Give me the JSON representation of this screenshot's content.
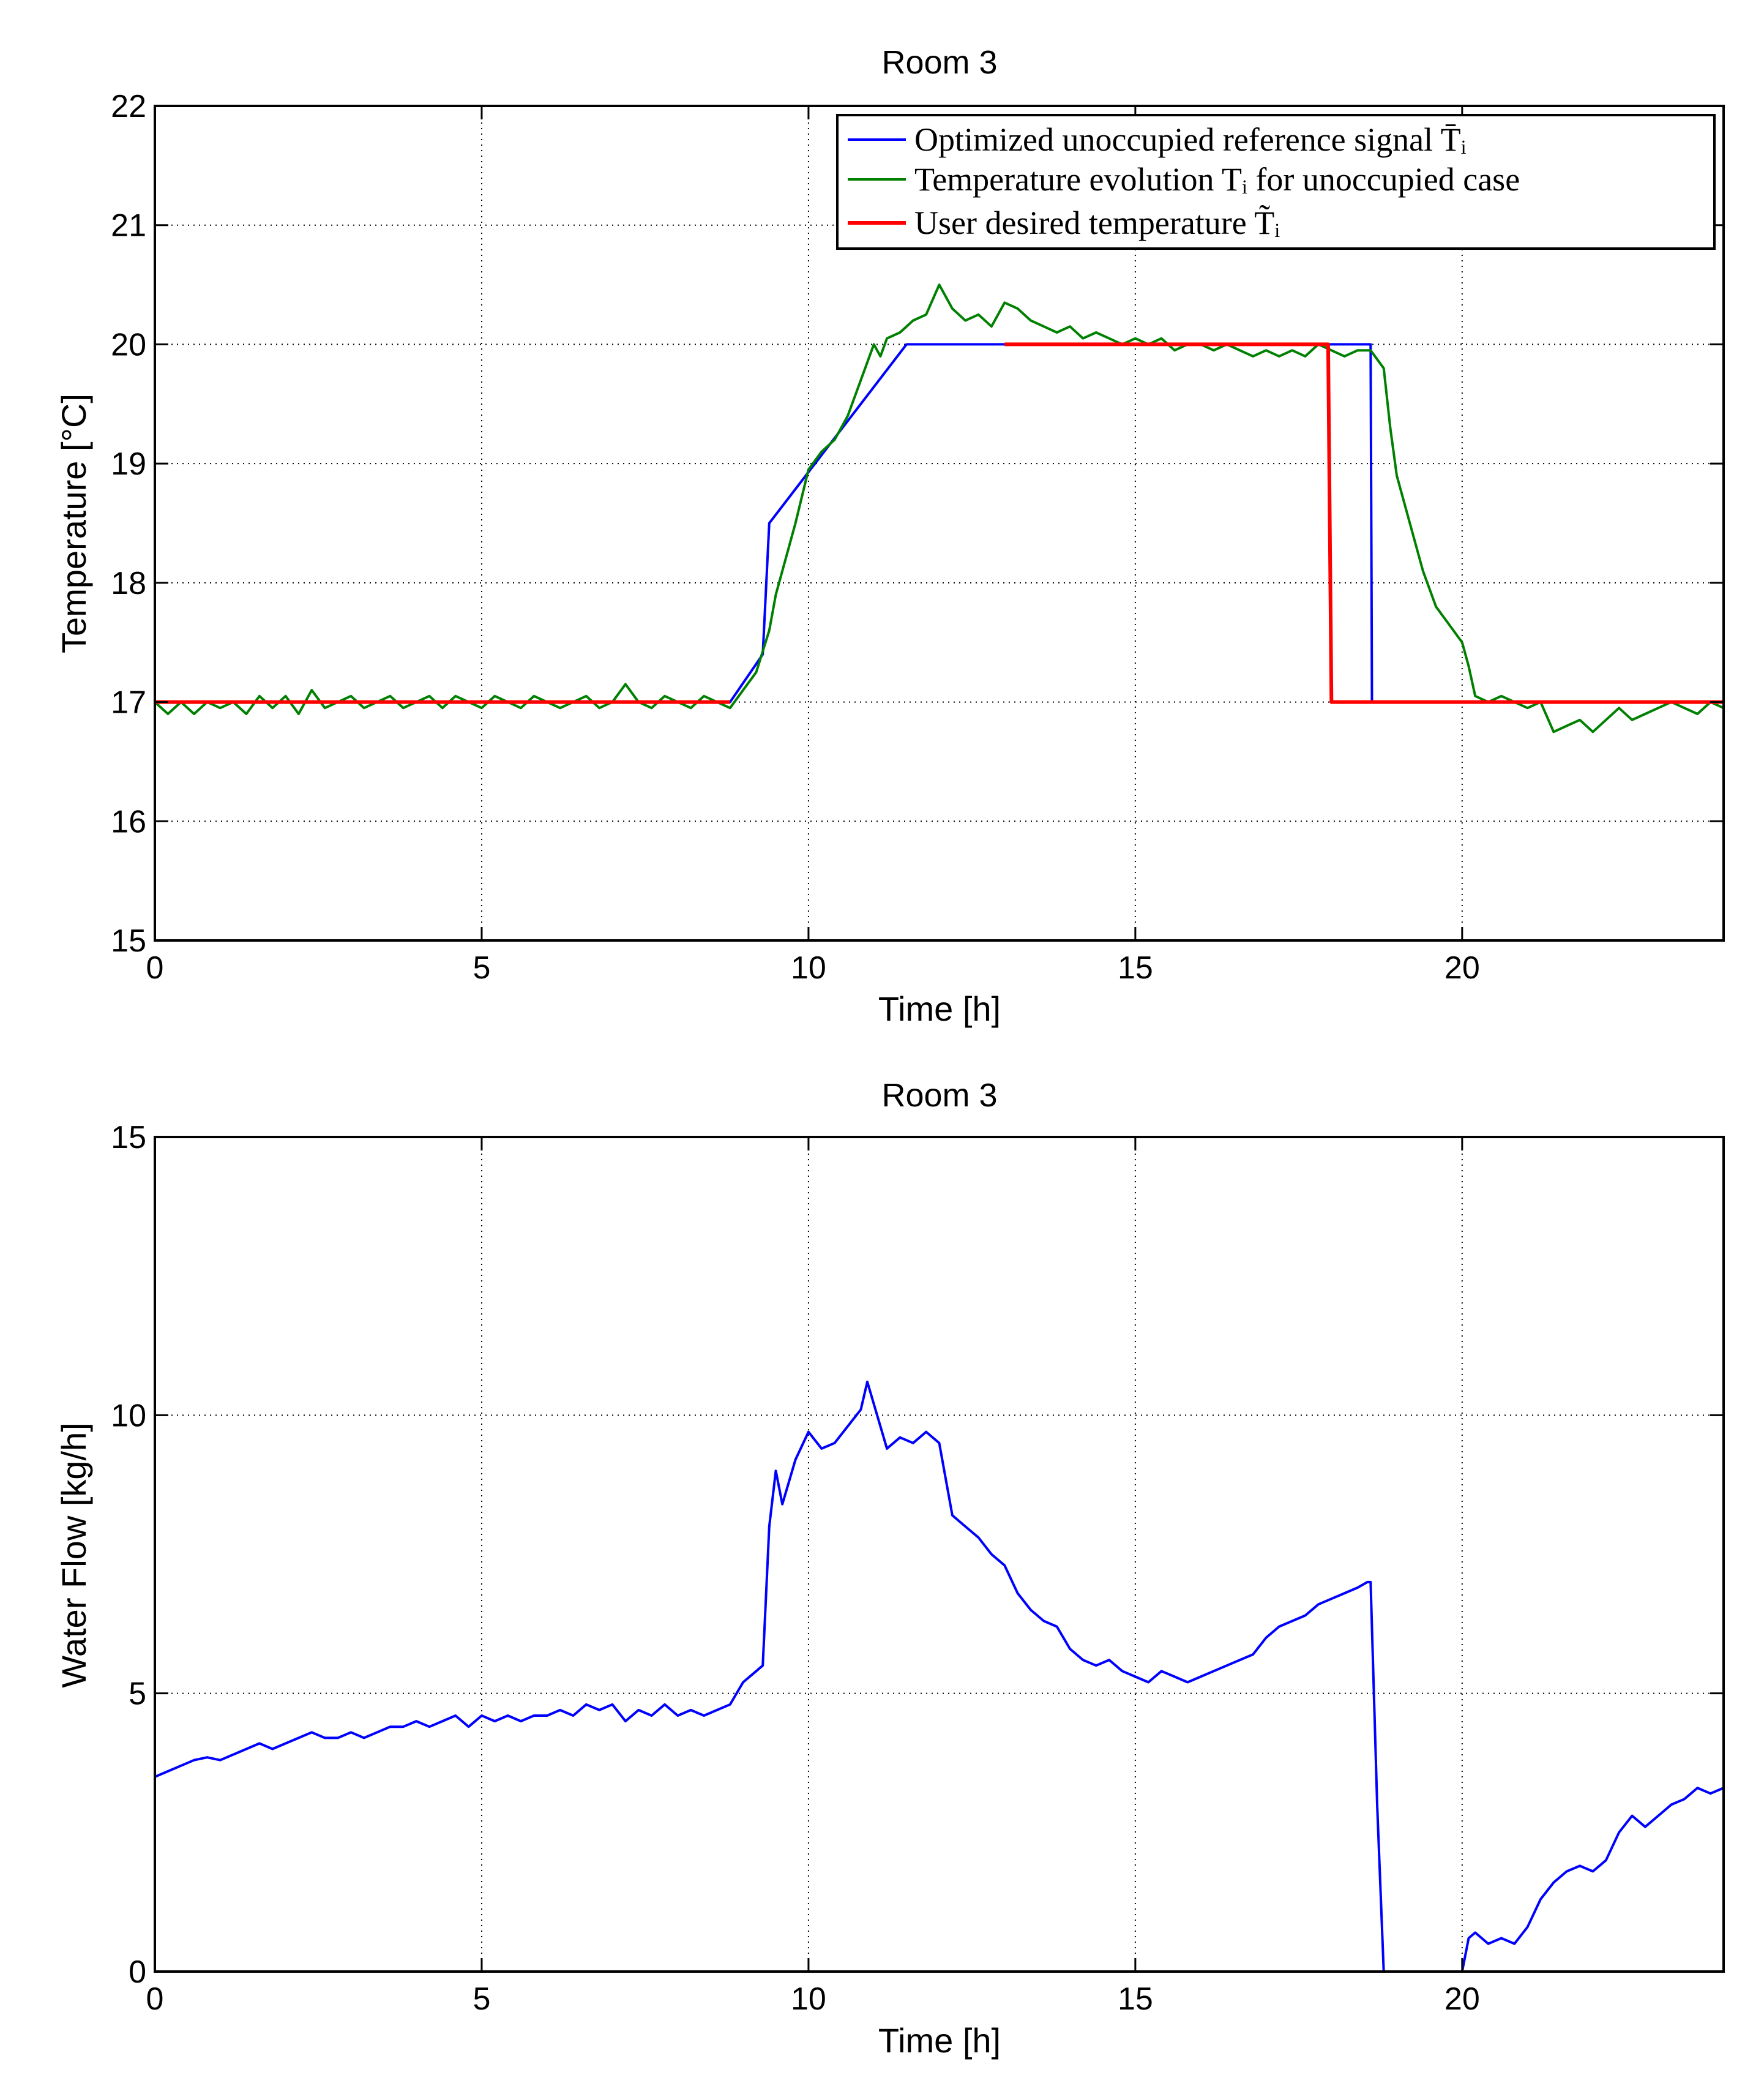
{
  "chart_data": [
    {
      "type": "line",
      "title": "Room 3",
      "xlabel": "Time [h]",
      "ylabel": "Temperature [°C]",
      "xlim": [
        0,
        24
      ],
      "ylim": [
        15,
        22
      ],
      "xticks": [
        0,
        5,
        10,
        15,
        20
      ],
      "yticks": [
        15,
        16,
        17,
        18,
        19,
        20,
        21,
        22
      ],
      "grid": true,
      "legend_position": "top-right",
      "series": [
        {
          "name": "Optimized unoccupied reference signal T̄ᵢ",
          "color": "#0000ff",
          "x": [
            0,
            8.8,
            9.3,
            9.4,
            11.5,
            18.6,
            18.62,
            24
          ],
          "y": [
            17,
            17,
            17.4,
            18.5,
            20,
            20,
            17,
            17
          ]
        },
        {
          "name": "Temperature evolution Tᵢ for unoccupied case",
          "color": "#008000",
          "x": [
            0,
            0.2,
            0.4,
            0.6,
            0.8,
            1.0,
            1.2,
            1.4,
            1.6,
            1.8,
            2.0,
            2.2,
            2.4,
            2.6,
            2.8,
            3.0,
            3.2,
            3.4,
            3.6,
            3.8,
            4.0,
            4.2,
            4.4,
            4.6,
            4.8,
            5.0,
            5.2,
            5.4,
            5.6,
            5.8,
            6.0,
            6.2,
            6.4,
            6.6,
            6.8,
            7.0,
            7.2,
            7.4,
            7.6,
            7.8,
            8.0,
            8.2,
            8.4,
            8.6,
            8.8,
            9.0,
            9.2,
            9.4,
            9.5,
            9.6,
            9.8,
            10.0,
            10.2,
            10.4,
            10.6,
            10.8,
            11.0,
            11.1,
            11.2,
            11.4,
            11.6,
            11.8,
            12.0,
            12.1,
            12.2,
            12.4,
            12.6,
            12.8,
            13.0,
            13.2,
            13.4,
            13.6,
            13.8,
            14.0,
            14.2,
            14.4,
            14.6,
            14.8,
            15.0,
            15.2,
            15.4,
            15.6,
            15.8,
            16.0,
            16.2,
            16.4,
            16.6,
            16.8,
            17.0,
            17.2,
            17.4,
            17.6,
            17.8,
            18.0,
            18.2,
            18.4,
            18.6,
            18.8,
            18.9,
            19.0,
            19.2,
            19.4,
            19.6,
            19.8,
            20.0,
            20.1,
            20.2,
            20.4,
            20.6,
            20.8,
            21.0,
            21.2,
            21.4,
            21.6,
            21.8,
            22.0,
            22.2,
            22.4,
            22.6,
            22.8,
            23.0,
            23.2,
            23.4,
            23.6,
            23.8,
            24.0
          ],
          "y": [
            17.0,
            16.9,
            17.0,
            16.9,
            17.0,
            16.95,
            17.0,
            16.9,
            17.05,
            16.95,
            17.05,
            16.9,
            17.1,
            16.95,
            17.0,
            17.05,
            16.95,
            17.0,
            17.05,
            16.95,
            17.0,
            17.05,
            16.95,
            17.05,
            17.0,
            16.95,
            17.05,
            17.0,
            16.95,
            17.05,
            17.0,
            16.95,
            17.0,
            17.05,
            16.95,
            17.0,
            17.15,
            17.0,
            16.95,
            17.05,
            17.0,
            16.95,
            17.05,
            17.0,
            16.95,
            17.1,
            17.25,
            17.6,
            17.9,
            18.1,
            18.5,
            18.95,
            19.1,
            19.2,
            19.4,
            19.7,
            20.0,
            19.9,
            20.05,
            20.1,
            20.2,
            20.25,
            20.5,
            20.4,
            20.3,
            20.2,
            20.25,
            20.15,
            20.35,
            20.3,
            20.2,
            20.15,
            20.1,
            20.15,
            20.05,
            20.1,
            20.05,
            20.0,
            20.05,
            20.0,
            20.05,
            19.95,
            20.0,
            20.0,
            19.95,
            20.0,
            19.95,
            19.9,
            19.95,
            19.9,
            19.95,
            19.9,
            20.0,
            19.95,
            19.9,
            19.95,
            19.95,
            19.8,
            19.3,
            18.9,
            18.5,
            18.1,
            17.8,
            17.65,
            17.5,
            17.3,
            17.05,
            17.0,
            17.05,
            17.0,
            16.95,
            17.0,
            16.75,
            16.8,
            16.85,
            16.75,
            16.85,
            16.95,
            16.85,
            16.9,
            16.95,
            17.0,
            16.95,
            16.9,
            17.0,
            16.95
          ],
          "x_extra": null
        },
        {
          "name": "User desired temperature T̃ᵢ",
          "color": "#ff0000",
          "x": [
            0,
            8.8,
            13.0,
            17.95,
            18.0,
            24
          ],
          "y": [
            17,
            17,
            20,
            20,
            17,
            17
          ],
          "segments": [
            [
              [
                0,
                17
              ],
              [
                8.8,
                17
              ]
            ],
            [
              [
                13.0,
                20
              ],
              [
                17.95,
                20
              ],
              [
                18.0,
                17
              ],
              [
                24,
                17
              ]
            ]
          ]
        }
      ]
    },
    {
      "type": "line",
      "title": "Room 3",
      "xlabel": "Time [h]",
      "ylabel": "Water Flow [kg/h]",
      "xlim": [
        0,
        24
      ],
      "ylim": [
        0,
        15
      ],
      "xticks": [
        0,
        5,
        10,
        15,
        20
      ],
      "yticks": [
        0,
        5,
        10,
        15
      ],
      "grid": true,
      "series": [
        {
          "name": "Water flow",
          "color": "#0000ff",
          "x": [
            0,
            0.2,
            0.4,
            0.6,
            0.8,
            1.0,
            1.2,
            1.4,
            1.6,
            1.8,
            2.0,
            2.2,
            2.4,
            2.6,
            2.8,
            3.0,
            3.2,
            3.4,
            3.6,
            3.8,
            4.0,
            4.2,
            4.4,
            4.6,
            4.8,
            5.0,
            5.2,
            5.4,
            5.6,
            5.8,
            6.0,
            6.2,
            6.4,
            6.6,
            6.8,
            7.0,
            7.2,
            7.4,
            7.6,
            7.8,
            8.0,
            8.2,
            8.4,
            8.6,
            8.8,
            9.0,
            9.2,
            9.3,
            9.4,
            9.5,
            9.6,
            9.8,
            10.0,
            10.2,
            10.4,
            10.6,
            10.8,
            10.9,
            11.0,
            11.2,
            11.4,
            11.6,
            11.8,
            12.0,
            12.2,
            12.4,
            12.6,
            12.8,
            13.0,
            13.2,
            13.4,
            13.6,
            13.8,
            14.0,
            14.2,
            14.4,
            14.6,
            14.8,
            15.0,
            15.2,
            15.4,
            15.6,
            15.8,
            16.0,
            16.2,
            16.4,
            16.6,
            16.8,
            17.0,
            17.2,
            17.4,
            17.6,
            17.8,
            18.0,
            18.2,
            18.4,
            18.55,
            18.6,
            18.7,
            18.8,
            19.0,
            19.2,
            19.4,
            19.6,
            19.8,
            20.0,
            20.1,
            20.2,
            20.4,
            20.6,
            20.8,
            21.0,
            21.2,
            21.4,
            21.6,
            21.8,
            22.0,
            22.2,
            22.4,
            22.6,
            22.8,
            23.0,
            23.2,
            23.4,
            23.6,
            23.8,
            24.0
          ],
          "y": [
            3.5,
            3.6,
            3.7,
            3.8,
            3.85,
            3.8,
            3.9,
            4.0,
            4.1,
            4.0,
            4.1,
            4.2,
            4.3,
            4.2,
            4.2,
            4.3,
            4.2,
            4.3,
            4.4,
            4.4,
            4.5,
            4.4,
            4.5,
            4.6,
            4.4,
            4.6,
            4.5,
            4.6,
            4.5,
            4.6,
            4.6,
            4.7,
            4.6,
            4.8,
            4.7,
            4.8,
            4.5,
            4.7,
            4.6,
            4.8,
            4.6,
            4.7,
            4.6,
            4.7,
            4.8,
            5.2,
            5.4,
            5.5,
            8.0,
            9.0,
            8.4,
            9.2,
            9.7,
            9.4,
            9.5,
            9.8,
            10.1,
            10.6,
            10.2,
            9.4,
            9.6,
            9.5,
            9.7,
            9.5,
            8.2,
            8.0,
            7.8,
            7.5,
            7.3,
            6.8,
            6.5,
            6.3,
            6.2,
            5.8,
            5.6,
            5.5,
            5.6,
            5.4,
            5.3,
            5.2,
            5.4,
            5.3,
            5.2,
            5.3,
            5.4,
            5.5,
            5.6,
            5.7,
            6.0,
            6.2,
            6.3,
            6.4,
            6.6,
            6.7,
            6.8,
            6.9,
            7.0,
            7.0,
            3.0,
            0,
            0,
            0,
            0,
            0,
            0,
            0,
            0.6,
            0.7,
            0.5,
            0.6,
            0.5,
            0.8,
            1.3,
            1.6,
            1.8,
            1.9,
            1.8,
            2.0,
            2.5,
            2.8,
            2.6,
            2.8,
            3.0,
            3.1,
            3.3,
            3.2,
            3.3
          ]
        }
      ]
    }
  ]
}
